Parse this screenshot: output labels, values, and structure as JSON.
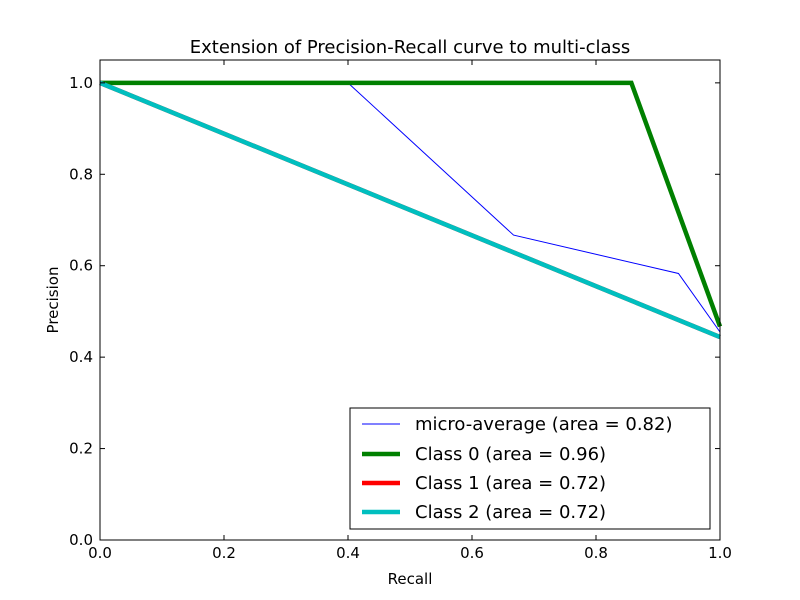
{
  "chart_data": {
    "type": "line",
    "title": "Extension of Precision-Recall curve to multi-class",
    "xlabel": "Recall",
    "ylabel": "Precision",
    "xlim": [
      0.0,
      1.0
    ],
    "ylim": [
      0.0,
      1.05
    ],
    "xticks": [
      0.0,
      0.2,
      0.4,
      0.6,
      0.8,
      1.0
    ],
    "yticks": [
      0.0,
      0.2,
      0.4,
      0.6,
      0.8,
      1.0
    ],
    "xtick_labels": [
      "0.0",
      "0.2",
      "0.4",
      "0.6",
      "0.8",
      "1.0"
    ],
    "ytick_labels": [
      "0.0",
      "0.2",
      "0.4",
      "0.6",
      "0.8",
      "1.0"
    ],
    "grid": false,
    "legend_position": "lower-right",
    "series": [
      {
        "name": "micro-average (area = 0.82)",
        "color": "#0000ff",
        "linewidth": "thin",
        "x": [
          0.0,
          0.4,
          0.667,
          0.933,
          1.0
        ],
        "y": [
          1.0,
          1.0,
          0.667,
          0.583,
          0.455
        ]
      },
      {
        "name": "Class 0 (area = 0.96)",
        "color": "#008000",
        "linewidth": "thick",
        "x": [
          0.0,
          0.857,
          1.0
        ],
        "y": [
          1.0,
          1.0,
          0.467
        ]
      },
      {
        "name": "Class 1 (area = 0.72)",
        "color": "#ff0000",
        "linewidth": "thick",
        "x": [
          0.0,
          1.0
        ],
        "y": [
          1.0,
          0.444
        ]
      },
      {
        "name": "Class 2 (area = 0.72)",
        "color": "#00bfbf",
        "linewidth": "thick",
        "x": [
          0.0,
          1.0
        ],
        "y": [
          1.0,
          0.444
        ]
      }
    ]
  }
}
